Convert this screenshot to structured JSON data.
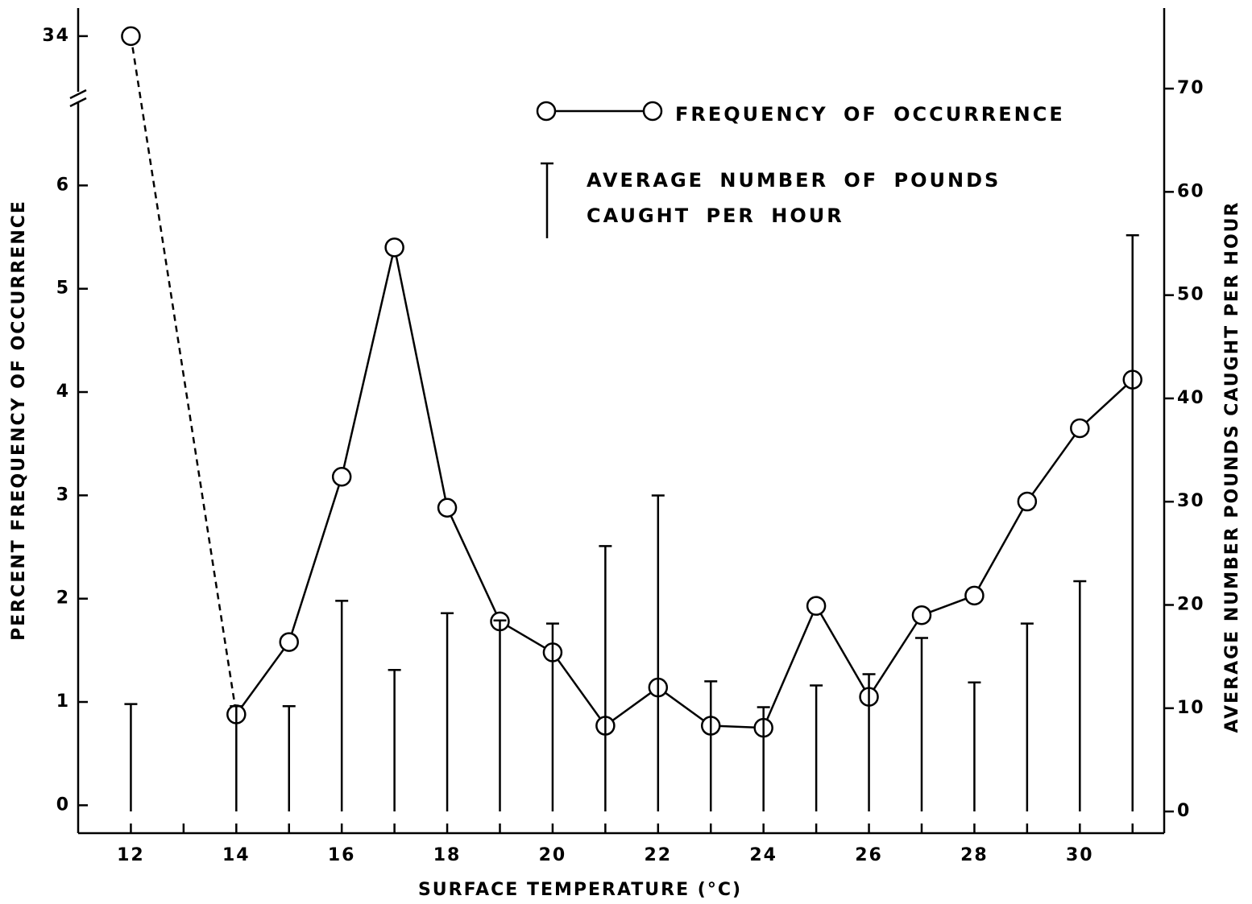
{
  "chart_data": {
    "type": "line_bar",
    "x_label": "SURFACE TEMPERATURE (°C)",
    "y_label": "PERCENT FREQUENCY OF OCCURRENCE",
    "y2_label": "AVERAGE NUMBER POUNDS CAUGHT PER HOUR",
    "xlim": [
      11.0,
      31.6
    ],
    "xticks": [
      12,
      14,
      16,
      18,
      20,
      22,
      24,
      26,
      28,
      30
    ],
    "xminor_ticks": [
      13,
      15,
      17,
      19,
      21,
      23,
      25,
      27,
      29,
      31
    ],
    "ylim": [
      -0.27,
      6.86
    ],
    "yticks": [
      0,
      1,
      2,
      3,
      4,
      5,
      6
    ],
    "upper_ylim": [
      33.44,
      34.26
    ],
    "upper_yticks": [
      34
    ],
    "y2lim": [
      -2.1,
      77.8
    ],
    "y2ticks": [
      0,
      10,
      20,
      30,
      40,
      50,
      60,
      70
    ],
    "dashed_first_segment": true,
    "series": [
      {
        "name": "FREQUENCY OF OCCURRENCE",
        "kind": "line",
        "color": "#000000",
        "x": [
          12,
          14,
          15,
          16,
          17,
          18,
          19,
          20,
          21,
          22,
          23,
          24,
          25,
          26,
          27,
          28,
          29,
          30,
          31
        ],
        "values": [
          34,
          0.88,
          1.58,
          3.18,
          5.4,
          2.88,
          1.78,
          1.48,
          0.77,
          1.14,
          0.77,
          0.75,
          1.93,
          1.05,
          1.84,
          2.03,
          2.94,
          3.65,
          4.12
        ]
      },
      {
        "name": "AVERAGE NUMBER OF POUNDS CAUGHT PER HOUR",
        "kind": "bar",
        "axis": "y2",
        "color": "#000000",
        "x": [
          12,
          14,
          15,
          16,
          17,
          18,
          19,
          20,
          21,
          22,
          23,
          24,
          25,
          26,
          27,
          28,
          29,
          30,
          31
        ],
        "values": [
          10.4,
          10.2,
          10.2,
          20.4,
          13.7,
          19.2,
          18.5,
          18.2,
          25.7,
          30.6,
          12.6,
          10.1,
          12.2,
          13.3,
          16.8,
          12.5,
          18.2,
          22.3,
          55.8
        ]
      }
    ]
  }
}
